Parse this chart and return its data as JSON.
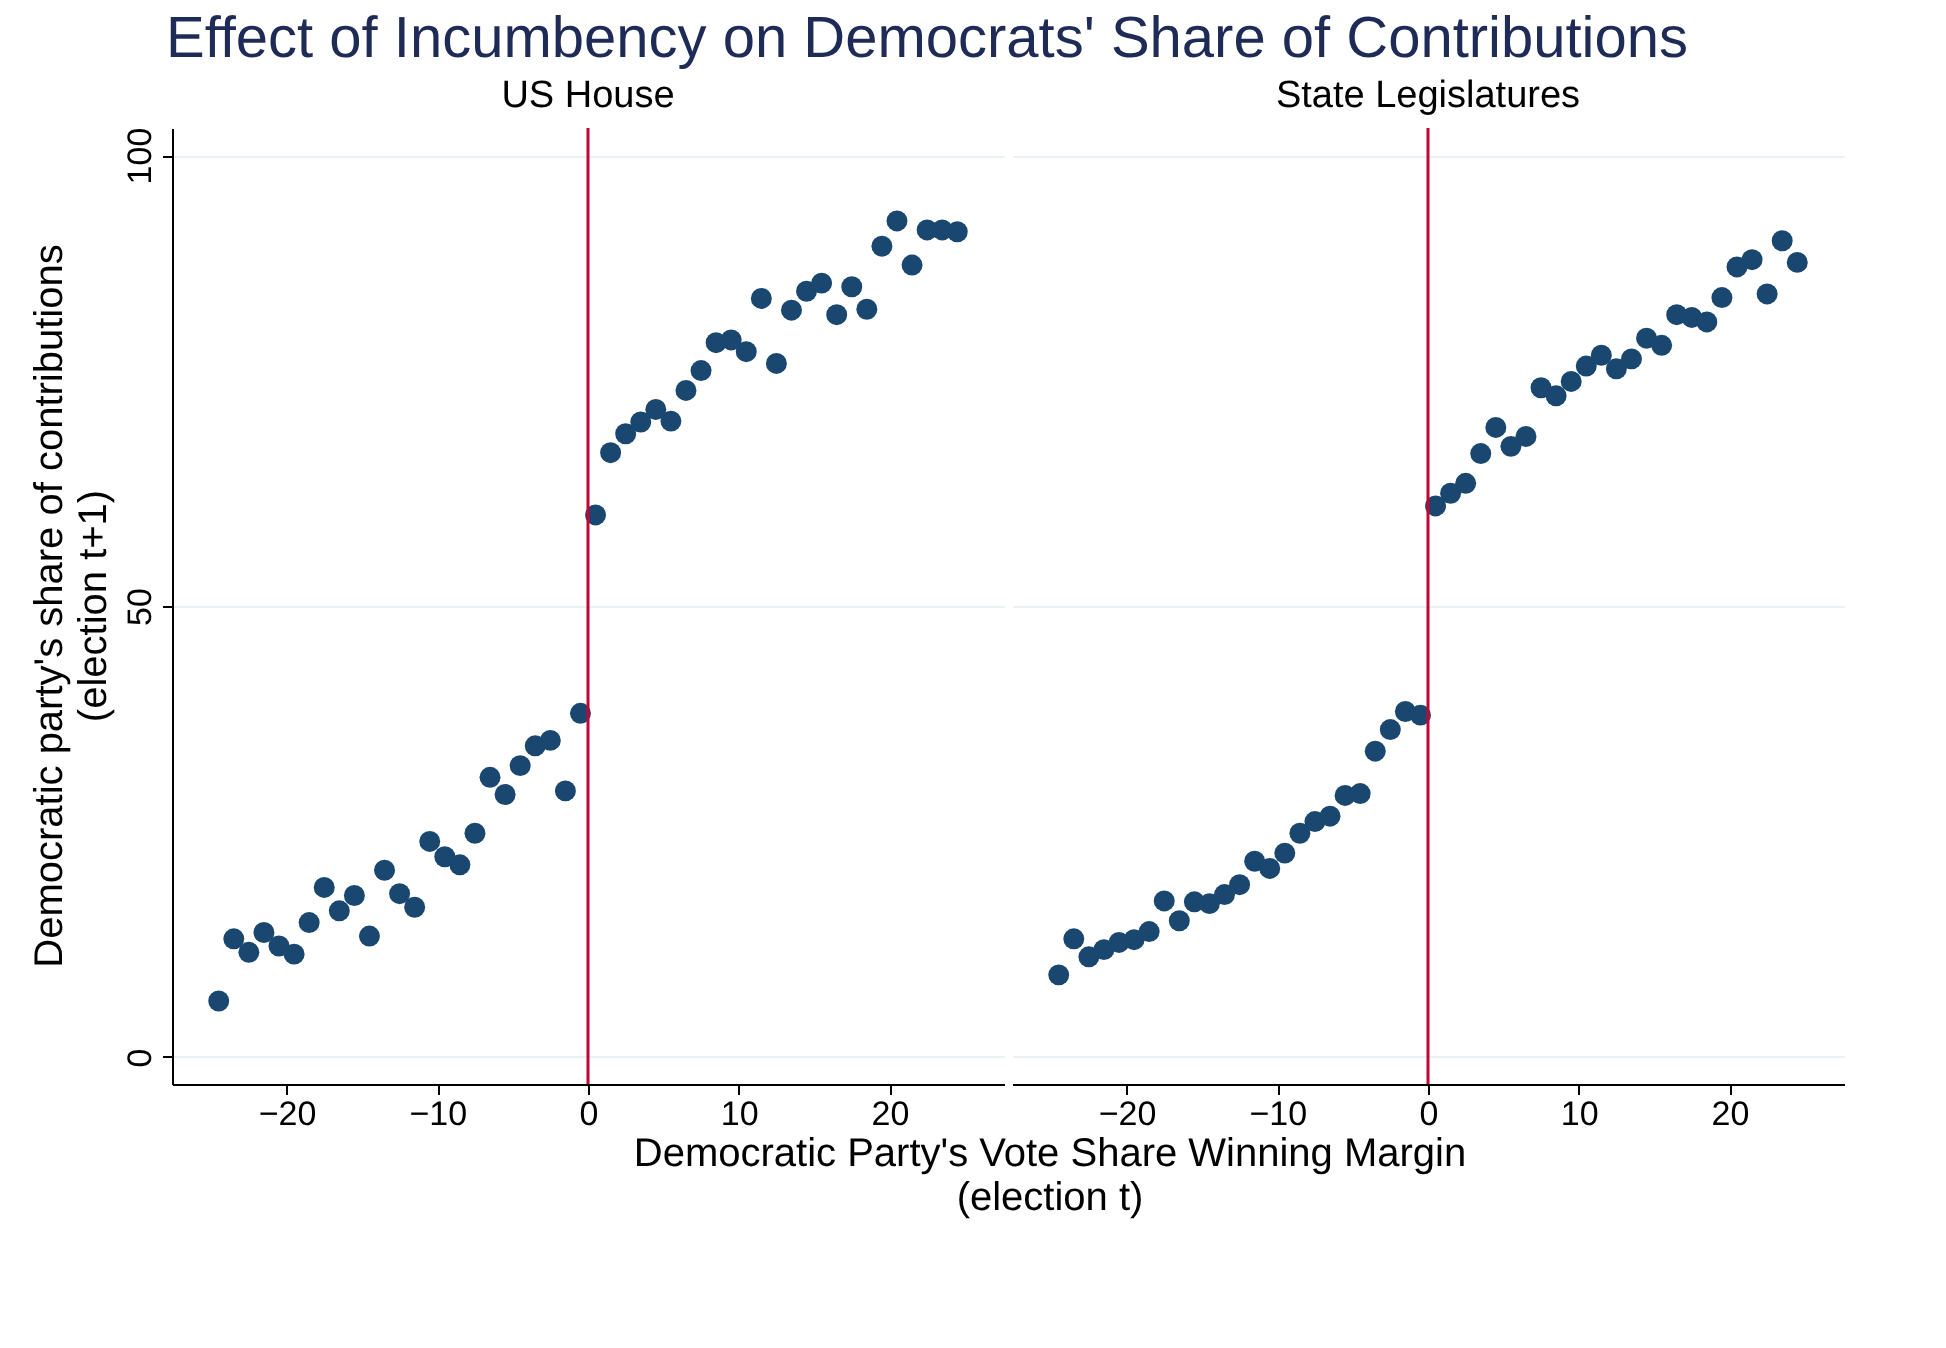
{
  "chart_data": [
    {
      "type": "scatter",
      "title": "Effect of Incumbency on Democrats' Share of Contributions",
      "subtitle": "US House",
      "xlabel": "Democratic Party's Vote Share Winning Margin\n(election t)",
      "ylabel": "Democratic party's share of contributions\n(election t+1)",
      "x": [
        -24.5,
        -23.5,
        -22.5,
        -21.5,
        -20.5,
        -19.5,
        -18.5,
        -17.5,
        -16.5,
        -15.5,
        -14.5,
        -13.5,
        -12.5,
        -11.5,
        -10.5,
        -9.5,
        -8.5,
        -7.5,
        -6.5,
        -5.5,
        -4.5,
        -3.5,
        -2.5,
        -1.5,
        -0.5,
        0.5,
        1.5,
        2.5,
        3.5,
        4.5,
        5.5,
        6.5,
        7.5,
        8.5,
        9.5,
        10.5,
        11.5,
        12.5,
        13.5,
        14.5,
        15.5,
        16.5,
        17.5,
        18.5,
        19.5,
        20.5,
        21.5,
        22.5,
        23.5,
        24.5
      ],
      "series": [
        {
          "color": "#1a476f",
          "values": [
            6.2,
            13.1,
            11.6,
            13.8,
            12.3,
            11.4,
            14.9,
            18.8,
            16.2,
            17.9,
            13.4,
            20.7,
            18.1,
            16.6,
            23.9,
            22.2,
            21.3,
            24.8,
            31.0,
            29.1,
            32.3,
            34.5,
            35.1,
            29.5,
            38.1,
            60.1,
            67.0,
            69.1,
            70.4,
            71.8,
            70.5,
            73.9,
            76.1,
            79.2,
            79.5,
            78.2,
            84.1,
            76.9,
            82.8,
            84.9,
            85.8,
            82.3,
            85.4,
            82.9,
            89.9,
            92.7,
            87.8,
            91.7,
            91.7,
            91.5
          ]
        }
      ],
      "xlim": [
        -27.6,
        27.6
      ],
      "ylim": [
        -3,
        103
      ],
      "xticks": [
        -20,
        -10,
        0,
        10,
        20
      ],
      "yticks": [
        0,
        50,
        100
      ],
      "grid": "y",
      "marker": "circle",
      "ref_lines": [
        {
          "axis": "x",
          "value": 0,
          "color": "#c10534"
        }
      ]
    },
    {
      "type": "scatter",
      "subtitle": "State Legislatures",
      "x": [
        -24.5,
        -23.5,
        -22.5,
        -21.5,
        -20.5,
        -19.5,
        -18.5,
        -17.5,
        -16.5,
        -15.5,
        -14.5,
        -13.5,
        -12.5,
        -11.5,
        -10.5,
        -9.5,
        -8.5,
        -7.5,
        -6.5,
        -5.5,
        -4.5,
        -3.5,
        -2.5,
        -1.5,
        -0.5,
        0.5,
        1.5,
        2.5,
        3.5,
        4.5,
        5.5,
        6.5,
        7.5,
        8.5,
        9.5,
        10.5,
        11.5,
        12.5,
        13.5,
        14.5,
        15.5,
        16.5,
        17.5,
        18.5,
        19.5,
        20.5,
        21.5,
        22.5,
        23.5,
        24.5
      ],
      "series": [
        {
          "color": "#1a476f",
          "values": [
            9.1,
            13.1,
            11.1,
            11.9,
            12.7,
            13.0,
            13.9,
            17.3,
            15.1,
            17.2,
            17.0,
            18.0,
            19.1,
            21.7,
            20.9,
            22.6,
            24.8,
            26.1,
            26.7,
            29.0,
            29.2,
            33.9,
            36.3,
            38.3,
            37.9,
            61.1,
            62.5,
            63.6,
            66.9,
            69.8,
            67.7,
            68.8,
            74.2,
            73.3,
            74.9,
            76.6,
            77.8,
            76.3,
            77.4,
            79.7,
            78.9,
            82.3,
            82.0,
            81.5,
            84.2,
            87.6,
            88.4,
            84.6,
            90.5,
            88.1
          ]
        }
      ],
      "xlim": [
        -27.6,
        27.6
      ],
      "ylim": [
        -3,
        103
      ],
      "xticks": [
        -20,
        -10,
        0,
        10,
        20
      ],
      "yticks": [
        0,
        50,
        100
      ],
      "grid": "y",
      "marker": "circle",
      "tick_labels": "x",
      "ref_lines": [
        {
          "axis": "x",
          "value": 0,
          "color": "#c10534"
        }
      ]
    }
  ]
}
